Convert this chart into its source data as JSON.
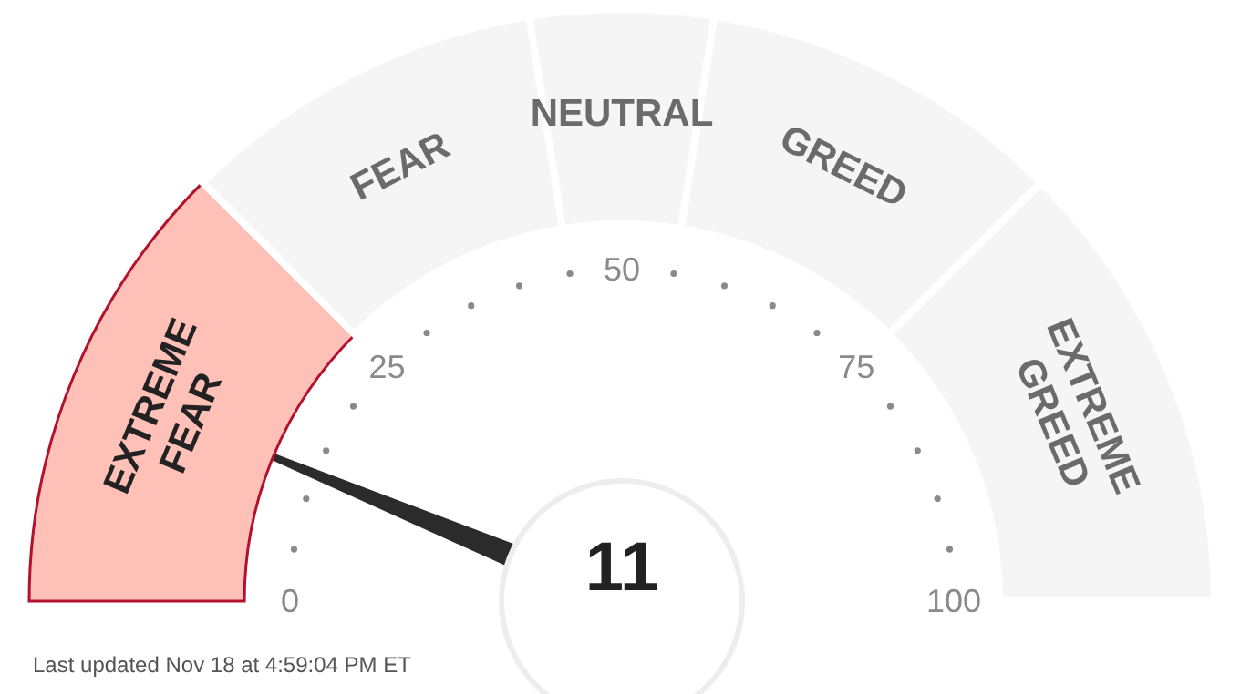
{
  "chart_data": {
    "type": "donut",
    "categories": [
      "EXTREME FEAR",
      "FEAR",
      "NEUTRAL",
      "GREED",
      "EXTREME GREED"
    ],
    "values": [
      25,
      20,
      10,
      20,
      25
    ],
    "colors": [
      "#ffc0b8",
      "#f5f5f5",
      "#f5f5f5",
      "#f5f5f5",
      "#f5f5f5"
    ],
    "needle": "EXTREME FEAR",
    "annotations": [
      "11",
      "0",
      "25",
      "50",
      "75",
      "100",
      "Last updated Nov 18 at 4:59:04 PM ET"
    ]
  }
}
